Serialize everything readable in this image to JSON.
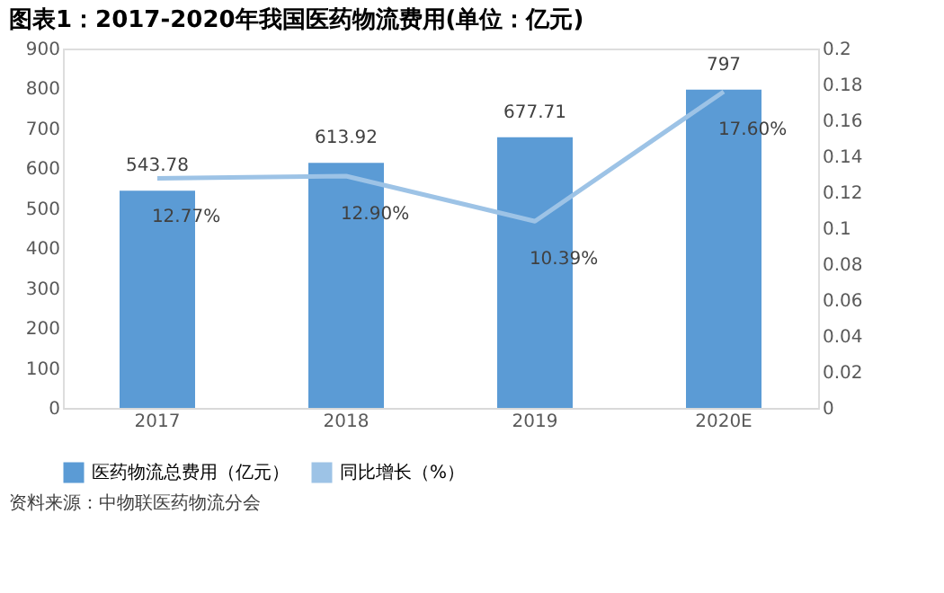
{
  "chart_data": {
    "type": "bar",
    "title": "图表1：2017-2020年我国医药物流费用(单位：亿元)",
    "categories": [
      "2017",
      "2018",
      "2019",
      "2020E"
    ],
    "series": [
      {
        "name": "医药物流总费用（亿元）",
        "color": "#5b9bd5",
        "values": [
          543.78,
          613.92,
          677.71,
          797
        ],
        "value_labels": [
          "543.78",
          "613.92",
          "677.71",
          "797"
        ]
      },
      {
        "name": "同比增长（%）",
        "type": "line",
        "axis": "y2",
        "color": "#9dc3e6",
        "values": [
          0.1277,
          0.129,
          0.1039,
          0.176
        ],
        "value_labels": [
          "12.77%",
          "12.90%",
          "10.39%",
          "17.60%"
        ]
      }
    ],
    "ylim": [
      0,
      900
    ],
    "yticks": [
      0,
      100,
      200,
      300,
      400,
      500,
      600,
      700,
      800,
      900
    ],
    "y2lim": [
      0,
      0.2
    ],
    "y2ticks": [
      0,
      0.02,
      0.04,
      0.06,
      0.08,
      0.1,
      0.12,
      0.14,
      0.16,
      0.18,
      0.2
    ],
    "grid": false,
    "legend": "bottom",
    "marker": "none",
    "line_style": "solid",
    "annotations": [
      "资料来源：中物联医药物流分会"
    ]
  }
}
